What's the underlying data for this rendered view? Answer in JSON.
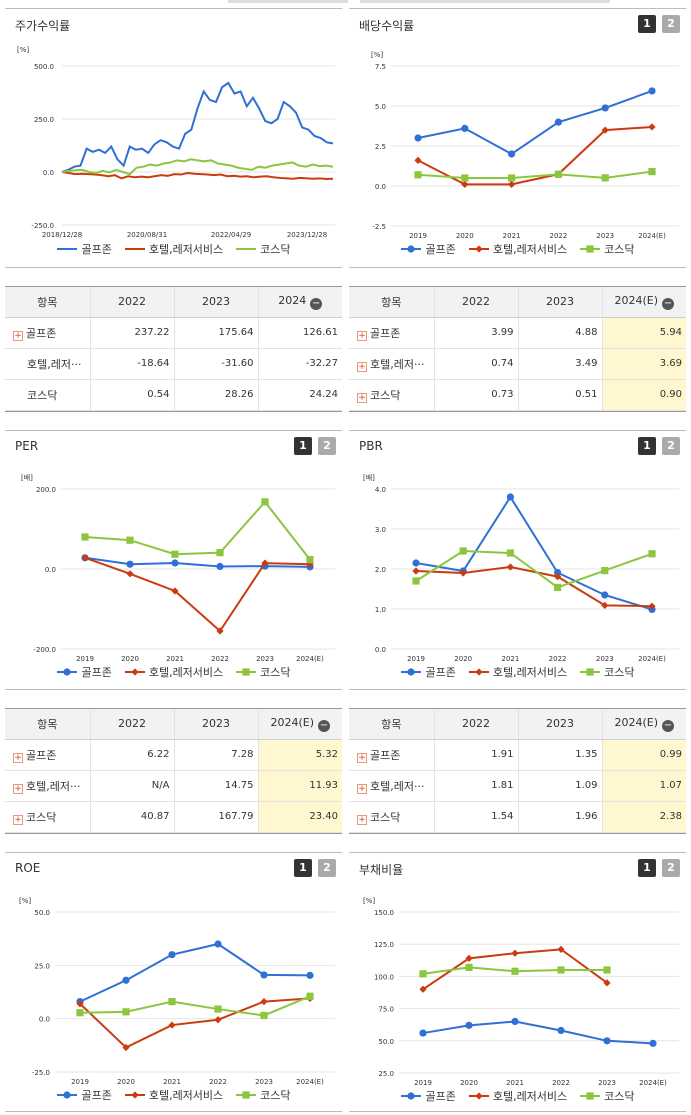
{
  "colors": {
    "blue": "#2f6fd6",
    "red": "#cc3a10",
    "green": "#8cc63e",
    "grid": "#e6e6e6"
  },
  "legend": [
    "골프존",
    "호텔,레저서비스",
    "코스닥"
  ],
  "pager": [
    "1",
    "2"
  ],
  "charts": {
    "stock": {
      "title": "주가수익률",
      "unit": "[%]",
      "ticks": [
        "500.0",
        "250.0",
        "0.0",
        "-250.0"
      ],
      "xticks": [
        "2018/12/28",
        "2020/08/31",
        "2022/04/29",
        "2023/12/28"
      ],
      "chart_data": {
        "type": "line",
        "ylim": [
          -250,
          500
        ],
        "x_range": [
          "2018/12/28",
          "2024/06"
        ],
        "series": [
          {
            "name": "골프존",
            "values": [
              0,
              10,
              25,
              30,
              110,
              95,
              105,
              90,
              120,
              60,
              30,
              120,
              105,
              110,
              90,
              130,
              150,
              140,
              120,
              110,
              180,
              200,
              300,
              380,
              340,
              330,
              400,
              420,
              370,
              380,
              310,
              350,
              300,
              240,
              230,
              250,
              330,
              310,
              280,
              210,
              200,
              170,
              160,
              140,
              135
            ]
          },
          {
            "name": "호텔,레저서비스",
            "values": [
              0,
              -5,
              -10,
              -8,
              -10,
              -12,
              -15,
              -20,
              -15,
              -30,
              -20,
              -25,
              -22,
              -25,
              -20,
              -15,
              -18,
              -10,
              -12,
              -5,
              -8,
              -10,
              -12,
              -15,
              -12,
              -20,
              -18,
              -22,
              -20,
              -25,
              -22,
              -20,
              -25,
              -28,
              -30,
              -32,
              -28,
              -30,
              -32,
              -30,
              -33,
              -32
            ]
          },
          {
            "name": "코스닥",
            "values": [
              0,
              5,
              8,
              10,
              0,
              -5,
              5,
              -2,
              10,
              0,
              -10,
              20,
              25,
              35,
              30,
              40,
              45,
              55,
              50,
              60,
              55,
              50,
              55,
              40,
              35,
              30,
              20,
              15,
              10,
              25,
              20,
              30,
              35,
              40,
              45,
              30,
              25,
              35,
              28,
              30,
              25
            ]
          }
        ]
      }
    },
    "dividend": {
      "title": "배당수익률",
      "unit": "[%]",
      "ticks": [
        "7.5",
        "5.0",
        "2.5",
        "0.0",
        "-2.5"
      ],
      "chart_data": {
        "type": "line",
        "categories": [
          "2019",
          "2020",
          "2021",
          "2022",
          "2023",
          "2024(E)"
        ],
        "ylim": [
          -2.5,
          7.5
        ],
        "series": [
          {
            "name": "골프존",
            "values": [
              3.0,
              3.6,
              2.0,
              3.99,
              4.88,
              5.94
            ]
          },
          {
            "name": "호텔,레저서비스",
            "values": [
              1.6,
              0.1,
              0.1,
              0.74,
              3.49,
              3.69
            ]
          },
          {
            "name": "코스닥",
            "values": [
              0.7,
              0.5,
              0.5,
              0.73,
              0.51,
              0.9
            ]
          }
        ]
      }
    },
    "per": {
      "title": "PER",
      "unit": "[배]",
      "ticks": [
        "200.0",
        "0.0",
        "-200.0"
      ],
      "chart_data": {
        "type": "line",
        "categories": [
          "2019",
          "2020",
          "2021",
          "2022",
          "2023",
          "2024(E)"
        ],
        "ylim": [
          -200,
          200
        ],
        "series": [
          {
            "name": "골프존",
            "values": [
              28,
              12,
              15,
              6.22,
              7.28,
              5.32
            ]
          },
          {
            "name": "호텔,레저서비스",
            "values": [
              28,
              -12,
              -55,
              -155,
              14.75,
              11.93
            ]
          },
          {
            "name": "코스닥",
            "values": [
              80,
              72,
              37,
              40.87,
              167.79,
              23.4
            ]
          }
        ]
      }
    },
    "pbr": {
      "title": "PBR",
      "unit": "[배]",
      "ticks": [
        "4.0",
        "3.0",
        "2.0",
        "1.0",
        "0.0"
      ],
      "chart_data": {
        "type": "line",
        "categories": [
          "2019",
          "2020",
          "2021",
          "2022",
          "2023",
          "2024(E)"
        ],
        "ylim": [
          0,
          4
        ],
        "series": [
          {
            "name": "골프존",
            "values": [
              2.15,
              1.95,
              3.8,
              1.91,
              1.35,
              0.99
            ]
          },
          {
            "name": "호텔,레저서비스",
            "values": [
              1.95,
              1.9,
              2.05,
              1.81,
              1.09,
              1.07
            ]
          },
          {
            "name": "코스닥",
            "values": [
              1.7,
              2.45,
              2.4,
              1.54,
              1.96,
              2.38
            ]
          }
        ]
      }
    },
    "roe": {
      "title": "ROE",
      "unit": "[%]",
      "ticks": [
        "50.0",
        "25.0",
        "0.0",
        "-25.0"
      ],
      "chart_data": {
        "type": "line",
        "categories": [
          "2019",
          "2020",
          "2021",
          "2022",
          "2023",
          "2024(E)"
        ],
        "ylim": [
          -25,
          50
        ],
        "series": [
          {
            "name": "골프존",
            "values": [
              8,
              18,
              30,
              35,
              20.5,
              20.3
            ]
          },
          {
            "name": "호텔,레저서비스",
            "values": [
              7,
              -13.5,
              -3,
              -0.5,
              8,
              9.5
            ]
          },
          {
            "name": "코스닥",
            "values": [
              2.8,
              3.2,
              8,
              4.5,
              1.5,
              10.5
            ]
          }
        ]
      }
    },
    "debt": {
      "title": "부채비율",
      "unit": "[%]",
      "ticks": [
        "150.0",
        "125.0",
        "100.0",
        "75.0",
        "50.0",
        "25.0"
      ],
      "chart_data": {
        "type": "line",
        "categories": [
          "2019",
          "2020",
          "2021",
          "2022",
          "2023",
          "2024(E)"
        ],
        "ylim": [
          25,
          150
        ],
        "series": [
          {
            "name": "골프존",
            "values": [
              56,
              62,
              65,
              58,
              50,
              48
            ]
          },
          {
            "name": "호텔,레저서비스",
            "values": [
              90,
              114,
              118,
              121,
              95,
              null
            ]
          },
          {
            "name": "코스닥",
            "values": [
              102,
              107,
              104,
              105,
              105,
              null
            ]
          }
        ]
      }
    }
  },
  "tables": {
    "stock": {
      "headers": [
        "항목",
        "2022",
        "2023",
        "2024"
      ],
      "highlight_last": false,
      "rows": [
        {
          "name": "골프존",
          "plus": true,
          "values": [
            "237.22",
            "175.64",
            "126.61"
          ]
        },
        {
          "name": "호텔,레저···",
          "plus": false,
          "values": [
            "-18.64",
            "-31.60",
            "-32.27"
          ]
        },
        {
          "name": "코스닥",
          "plus": false,
          "values": [
            "0.54",
            "28.26",
            "24.24"
          ]
        }
      ]
    },
    "dividend": {
      "headers": [
        "항목",
        "2022",
        "2023",
        "2024(E)"
      ],
      "highlight_last": true,
      "rows": [
        {
          "name": "골프존",
          "plus": true,
          "values": [
            "3.99",
            "4.88",
            "5.94"
          ]
        },
        {
          "name": "호텔,레저···",
          "plus": true,
          "values": [
            "0.74",
            "3.49",
            "3.69"
          ]
        },
        {
          "name": "코스닥",
          "plus": true,
          "values": [
            "0.73",
            "0.51",
            "0.90"
          ]
        }
      ]
    },
    "per": {
      "headers": [
        "항목",
        "2022",
        "2023",
        "2024(E)"
      ],
      "highlight_last": true,
      "rows": [
        {
          "name": "골프존",
          "plus": true,
          "values": [
            "6.22",
            "7.28",
            "5.32"
          ]
        },
        {
          "name": "호텔,레저···",
          "plus": true,
          "values": [
            "N/A",
            "14.75",
            "11.93"
          ]
        },
        {
          "name": "코스닥",
          "plus": true,
          "values": [
            "40.87",
            "167.79",
            "23.40"
          ]
        }
      ]
    },
    "pbr": {
      "headers": [
        "항목",
        "2022",
        "2023",
        "2024(E)"
      ],
      "highlight_last": true,
      "rows": [
        {
          "name": "골프존",
          "plus": true,
          "values": [
            "1.91",
            "1.35",
            "0.99"
          ]
        },
        {
          "name": "호텔,레저···",
          "plus": true,
          "values": [
            "1.81",
            "1.09",
            "1.07"
          ]
        },
        {
          "name": "코스닥",
          "plus": true,
          "values": [
            "1.54",
            "1.96",
            "2.38"
          ]
        }
      ]
    }
  }
}
